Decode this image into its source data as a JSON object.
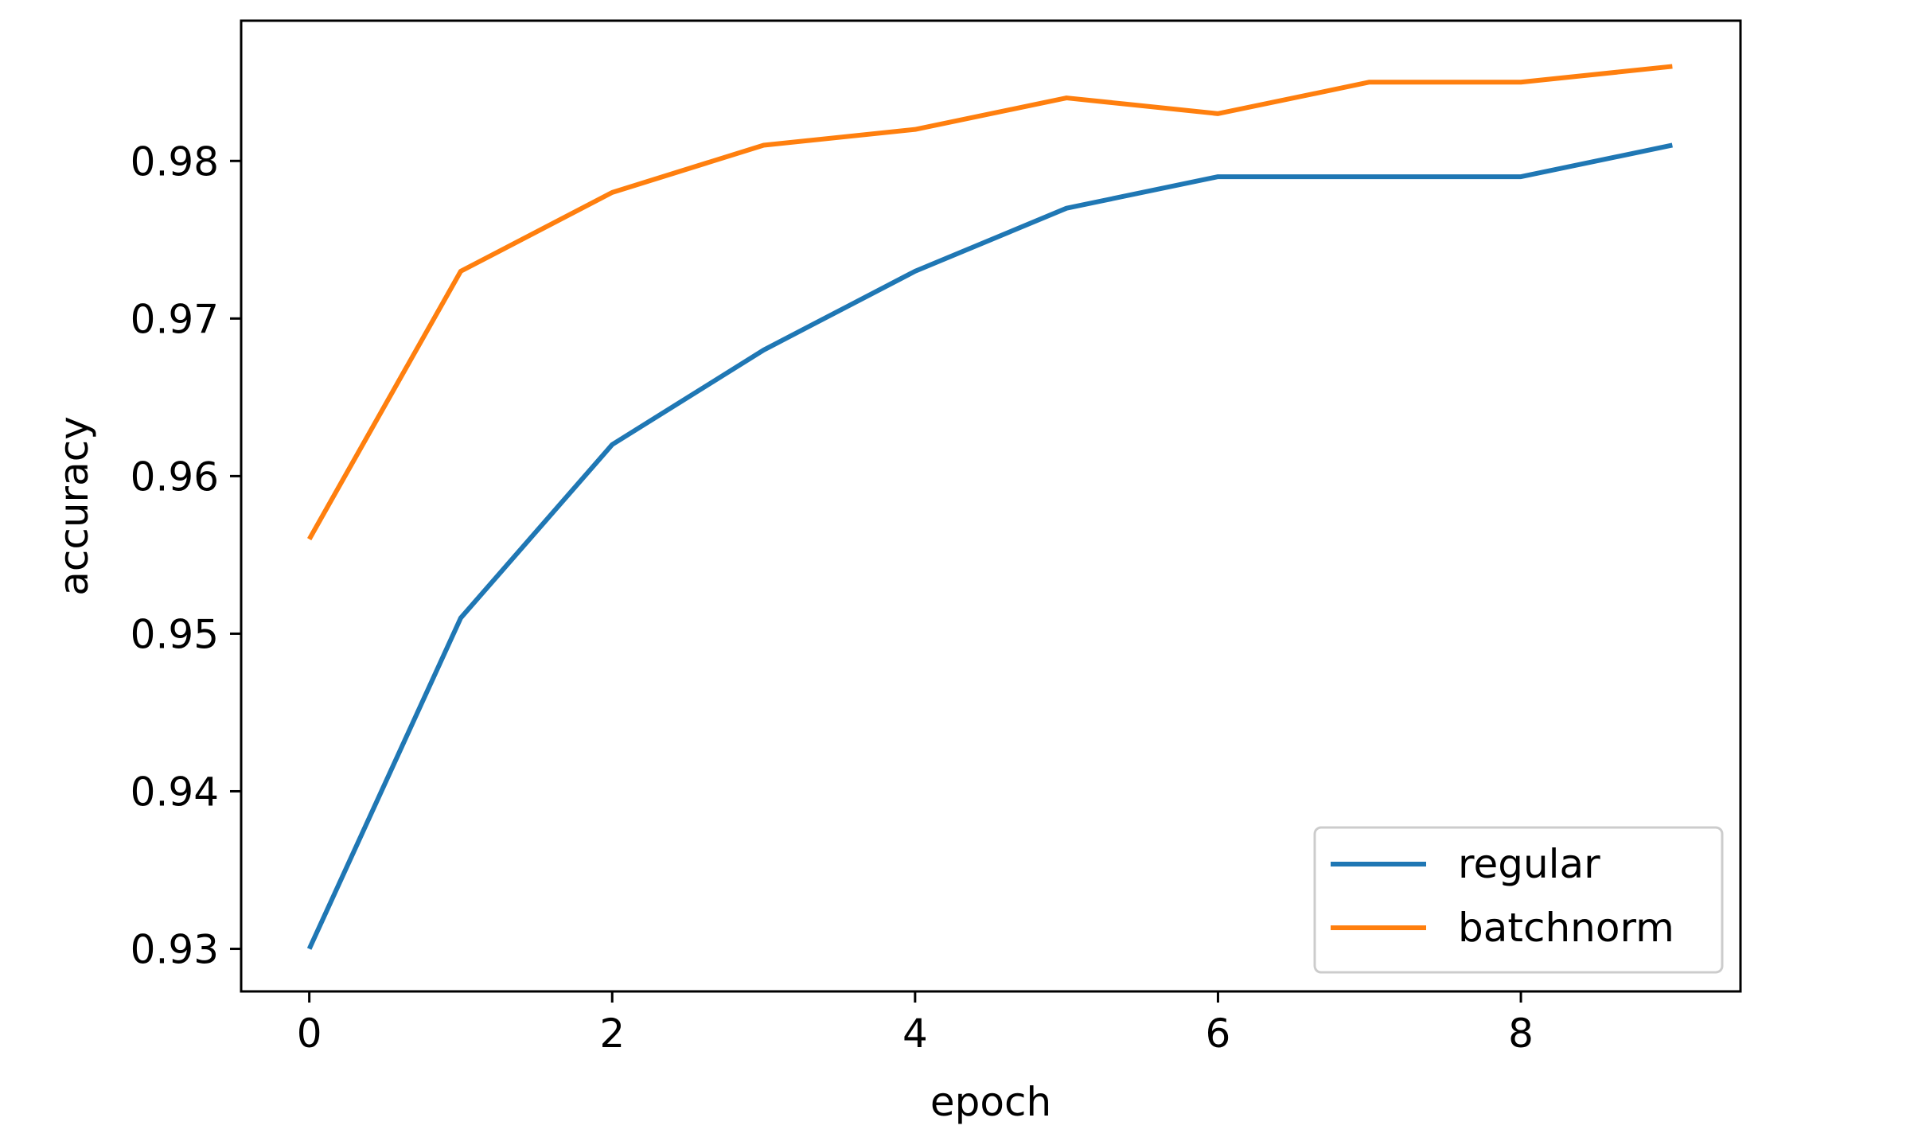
{
  "chart_data": {
    "type": "line",
    "title": "",
    "xlabel": "epoch",
    "ylabel": "accuracy",
    "x": [
      0,
      1,
      2,
      3,
      4,
      5,
      6,
      7,
      8,
      9
    ],
    "xlim": [
      -0.45,
      9.45
    ],
    "ylim": [
      0.9273,
      0.9889
    ],
    "xticks": [
      0,
      2,
      4,
      6,
      8
    ],
    "xtick_labels": [
      "0",
      "2",
      "4",
      "6",
      "8"
    ],
    "yticks": [
      0.93,
      0.94,
      0.95,
      0.96,
      0.97,
      0.98
    ],
    "ytick_labels": [
      "0.93",
      "0.94",
      "0.95",
      "0.96",
      "0.97",
      "0.98"
    ],
    "grid": false,
    "legend_position": "lower-right",
    "series": [
      {
        "name": "regular",
        "color": "#1f77b4",
        "values": [
          0.93,
          0.951,
          0.962,
          0.968,
          0.973,
          0.977,
          0.979,
          0.979,
          0.979,
          0.981
        ]
      },
      {
        "name": "batchnorm",
        "color": "#ff7f0e",
        "values": [
          0.956,
          0.973,
          0.978,
          0.981,
          0.982,
          0.984,
          0.983,
          0.985,
          0.985,
          0.986
        ]
      }
    ]
  }
}
